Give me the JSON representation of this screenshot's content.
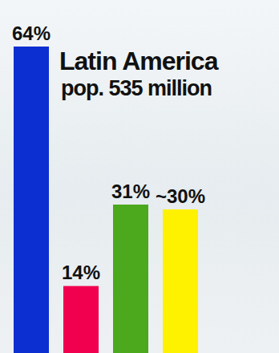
{
  "chart_data": {
    "type": "bar",
    "title": "Latin America",
    "subtitle": "pop. 535 million",
    "categories": [
      null,
      null,
      null,
      null
    ],
    "values": [
      64,
      14,
      31,
      30
    ],
    "value_labels": [
      "64%",
      "14%",
      "31%",
      "~30%"
    ],
    "colors": [
      "#0b2fd0",
      "#f0004e",
      "#4ca81c",
      "#fff200"
    ],
    "ylim": [
      0,
      64
    ],
    "data_labels": true,
    "tick_labels": false,
    "grid": false
  }
}
